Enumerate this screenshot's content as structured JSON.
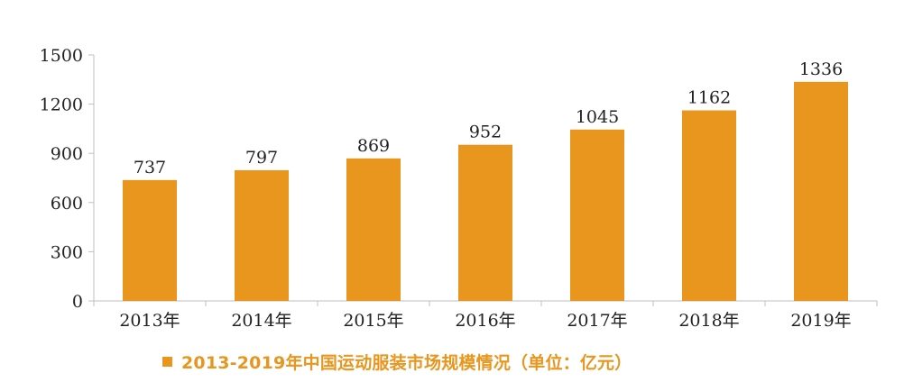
{
  "chart_data": {
    "type": "bar",
    "categories": [
      "2013年",
      "2014年",
      "2015年",
      "2016年",
      "2017年",
      "2018年",
      "2019年"
    ],
    "series": [
      {
        "name": "2013-2019年中国运动服装市场规模情况（单位：亿元）",
        "values": [
          737,
          797,
          869,
          952,
          1045,
          1162,
          1336
        ]
      }
    ],
    "data_labels": [
      "737",
      "797",
      "869",
      "952",
      "1045",
      "1162",
      "1336"
    ],
    "y_ticks": [
      "0",
      "300",
      "600",
      "900",
      "1200",
      "1500"
    ],
    "ylim": [
      0,
      1500
    ],
    "grid": false,
    "legend_position": "bottom",
    "bar_color": "#E8961E",
    "legend_text_color": "#E8961E"
  }
}
